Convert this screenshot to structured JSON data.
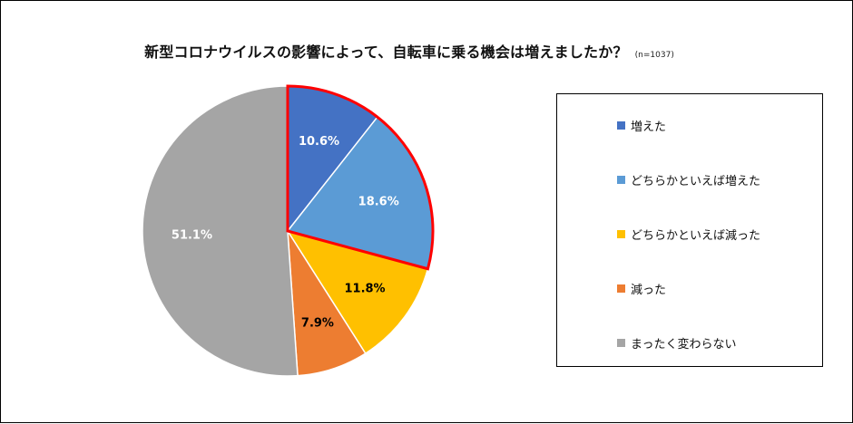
{
  "chart_data": {
    "type": "pie",
    "title": "新型コロナウイルスの影響によって、自転車に乗る機会は増えましたか？",
    "subtitle": "(n=1037)",
    "slices": [
      {
        "label": "増えた",
        "value": 10.6,
        "display": "10.6%",
        "color": "#4472C4",
        "label_color": "#ffffff",
        "highlighted": true
      },
      {
        "label": "どちらかといえば増えた",
        "value": 18.6,
        "display": "18.6%",
        "color": "#5B9BD5",
        "label_color": "#ffffff",
        "highlighted": true
      },
      {
        "label": "どちらかといえば減った",
        "value": 11.8,
        "display": "11.8%",
        "color": "#FFC000",
        "label_color": "#000000",
        "highlighted": false
      },
      {
        "label": "減った",
        "value": 7.9,
        "display": "7.9%",
        "color": "#ED7D31",
        "label_color": "#000000",
        "highlighted": false
      },
      {
        "label": "まったく変わらない",
        "value": 51.1,
        "display": "51.1%",
        "color": "#A5A5A5",
        "label_color": "#ffffff",
        "highlighted": false
      }
    ],
    "highlight_color": "#FF0000",
    "legend_position": "right"
  }
}
